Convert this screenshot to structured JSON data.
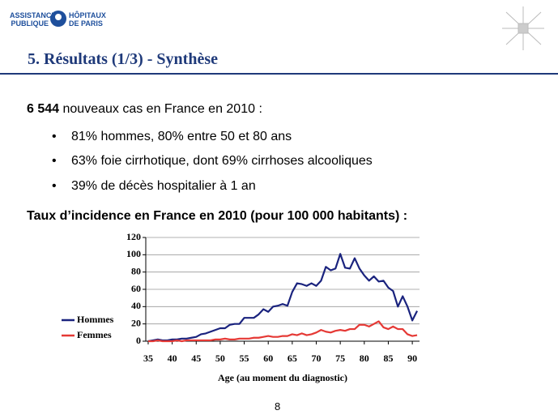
{
  "logo": {
    "line1": "ASSISTANCE",
    "line2": "PUBLIQUE",
    "line3": "HÔPITAUX",
    "line4": "DE PARIS"
  },
  "title": "5. Résultats (1/3) - Synthèse",
  "lead": {
    "count": "6 544",
    "text": "nouveaux cas en France en 2010 :"
  },
  "bullets": [
    "81% hommes, 80% entre 50 et 80 ans",
    "63% foie cirrhotique, dont 69% cirrhoses alcooliques",
    "39% de décès hospitalier à 1 an"
  ],
  "chart_heading": "Taux d’incidence en France en 2010 (pour 100 000 habitants) :",
  "chart_data": {
    "type": "line",
    "x_label": "Age (au moment du diagnostic)",
    "x": [
      35,
      36,
      37,
      38,
      39,
      40,
      41,
      42,
      43,
      44,
      45,
      46,
      47,
      48,
      49,
      50,
      51,
      52,
      53,
      54,
      55,
      56,
      57,
      58,
      59,
      60,
      61,
      62,
      63,
      64,
      65,
      66,
      67,
      68,
      69,
      70,
      71,
      72,
      73,
      74,
      75,
      76,
      77,
      78,
      79,
      80,
      81,
      82,
      83,
      84,
      85,
      86,
      87,
      88,
      89,
      90,
      91
    ],
    "series": [
      {
        "name": "Hommes",
        "color": "#1a237e",
        "values": [
          0,
          1,
          2,
          1,
          1,
          2,
          2,
          3,
          3,
          4,
          5,
          8,
          9,
          11,
          13,
          15,
          15,
          19,
          20,
          20,
          27,
          27,
          27,
          31,
          37,
          34,
          40,
          41,
          43,
          41,
          57,
          67,
          66,
          64,
          67,
          64,
          70,
          86,
          82,
          84,
          101,
          85,
          84,
          96,
          84,
          76,
          70,
          75,
          69,
          70,
          62,
          58,
          40,
          52,
          40,
          24,
          35
        ]
      },
      {
        "name": "Femmes",
        "color": "#e53935",
        "values": [
          0,
          0,
          1,
          0,
          0,
          0,
          1,
          0,
          1,
          1,
          1,
          1,
          1,
          1,
          2,
          2,
          3,
          2,
          2,
          3,
          3,
          3,
          4,
          4,
          5,
          6,
          5,
          5,
          6,
          6,
          8,
          7,
          9,
          7,
          8,
          10,
          13,
          11,
          10,
          12,
          13,
          12,
          14,
          14,
          19,
          19,
          17,
          20,
          23,
          16,
          14,
          17,
          14,
          14,
          8,
          6,
          7
        ]
      }
    ],
    "xlim": [
      34.5,
      91.5
    ],
    "xticks": [
      35,
      40,
      45,
      50,
      55,
      60,
      65,
      70,
      75,
      80,
      85,
      90
    ],
    "ylim": [
      0,
      120
    ],
    "yticks": [
      0,
      20,
      40,
      60,
      80,
      100,
      120
    ],
    "grid": true,
    "legend": "left"
  },
  "page_number": "8"
}
